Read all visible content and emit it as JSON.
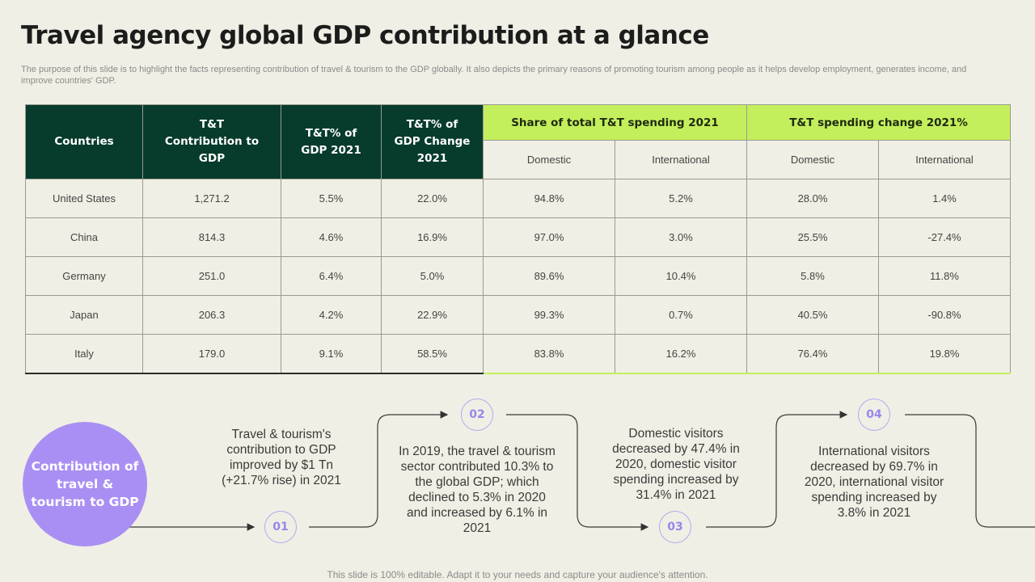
{
  "title": "Travel agency global GDP contribution at a glance",
  "subtitle": "The purpose of this slide is to highlight the facts representing contribution of travel & tourism to the GDP globally. It also depicts the primary reasons of promoting tourism among people as it helps develop employment, generates income, and improve countries' GDP.",
  "table": {
    "headers": {
      "countries": "Countries",
      "contribution": "T&T Contribution to GDP",
      "gdp_2021": "T&T% of GDP 2021",
      "gdp_change": "T&T% of GDP Change 2021",
      "share_group": "Share of total T&T spending 2021",
      "change_group": "T&T spending change 2021%",
      "domestic": "Domestic",
      "international": "International"
    },
    "rows": [
      {
        "country": "United States",
        "contribution": "1,271.2",
        "gdp_2021": "5.5%",
        "gdp_change": "22.0%",
        "share_domestic": "94.8%",
        "share_international": "5.2%",
        "change_domestic": "28.0%",
        "change_international": "1.4%"
      },
      {
        "country": "China",
        "contribution": "814.3",
        "gdp_2021": "4.6%",
        "gdp_change": "16.9%",
        "share_domestic": "97.0%",
        "share_international": "3.0%",
        "change_domestic": "25.5%",
        "change_international": "-27.4%"
      },
      {
        "country": "Germany",
        "contribution": "251.0",
        "gdp_2021": "6.4%",
        "gdp_change": "5.0%",
        "share_domestic": "89.6%",
        "share_international": "10.4%",
        "change_domestic": "5.8%",
        "change_international": "11.8%"
      },
      {
        "country": "Japan",
        "contribution": "206.3",
        "gdp_2021": "4.2%",
        "gdp_change": "22.9%",
        "share_domestic": "99.3%",
        "share_international": "0.7%",
        "change_domestic": "40.5%",
        "change_international": "-90.8%"
      },
      {
        "country": "Italy",
        "contribution": "179.0",
        "gdp_2021": "9.1%",
        "gdp_change": "58.5%",
        "share_domestic": "83.8%",
        "share_international": "16.2%",
        "change_domestic": "76.4%",
        "change_international": "19.8%"
      }
    ]
  },
  "process": {
    "main_label": "Contribution of travel & tourism to GDP",
    "steps": [
      {
        "number": "01",
        "text": "Travel & tourism's contribution to GDP improved by $1 Tn (+21.7% rise) in 2021"
      },
      {
        "number": "02",
        "text": "In 2019, the travel & tourism sector contributed 10.3% to the global GDP; which declined to 5.3% in 2020 and increased by 6.1% in 2021"
      },
      {
        "number": "03",
        "text": "Domestic visitors decreased by 47.4% in 2020, domestic visitor spending increased by 31.4% in 2021"
      },
      {
        "number": "04",
        "text": "International visitors decreased by 69.7% in 2020, international visitor spending increased by 3.8% in 2021"
      }
    ]
  },
  "footer": "This slide is 100% editable. Adapt it to your needs and capture your audience's attention.",
  "colors": {
    "background": "#f0efe5",
    "header_dark": "#073b2c",
    "header_lime": "#c4ef5c",
    "accent_purple": "#a98ff3"
  }
}
